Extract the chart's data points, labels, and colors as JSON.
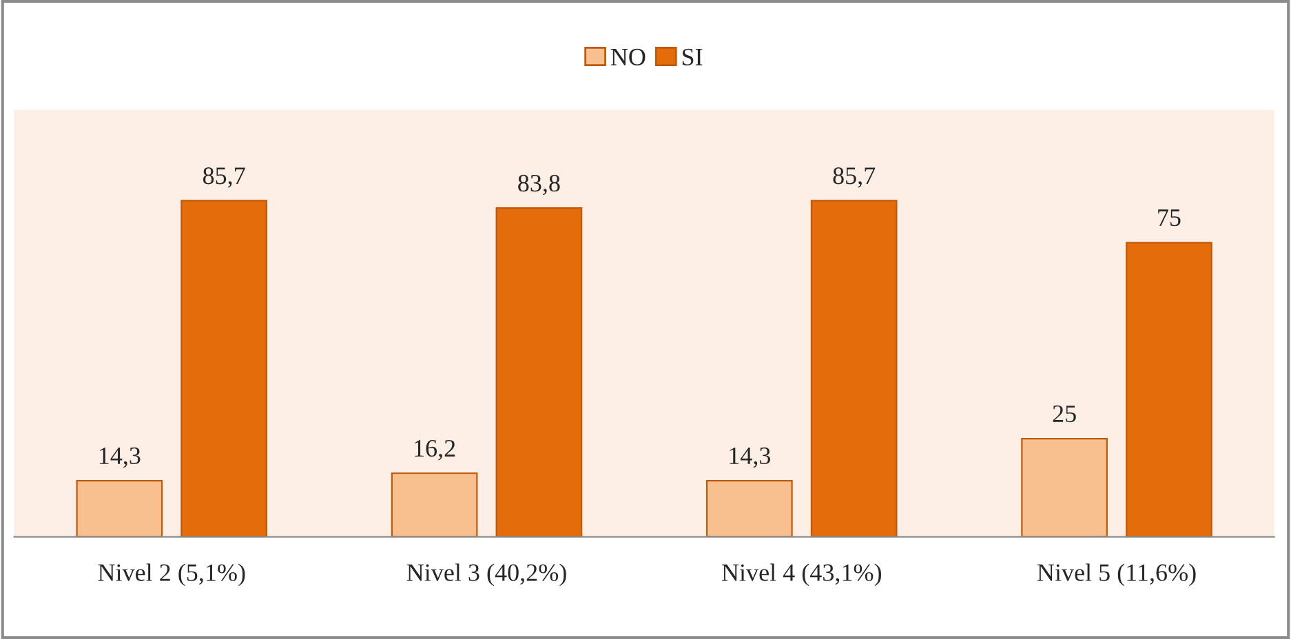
{
  "chart_data": {
    "type": "bar",
    "categories": [
      "Nivel 2 (5,1%)",
      "Nivel 3 (40,2%)",
      "Nivel 4 (43,1%)",
      "Nivel 5 (11,6%)"
    ],
    "series": [
      {
        "name": "NO",
        "color": "#f9c08f",
        "values": [
          14.3,
          16.2,
          14.3,
          25
        ],
        "value_labels": [
          "14,3",
          "16,2",
          "14,3",
          "25"
        ]
      },
      {
        "name": "SI",
        "color": "#e46c0a",
        "values": [
          85.7,
          83.8,
          85.7,
          75
        ],
        "value_labels": [
          "85,7",
          "83,8",
          "85,7",
          "75"
        ]
      }
    ],
    "legend": "top",
    "grid": false
  }
}
